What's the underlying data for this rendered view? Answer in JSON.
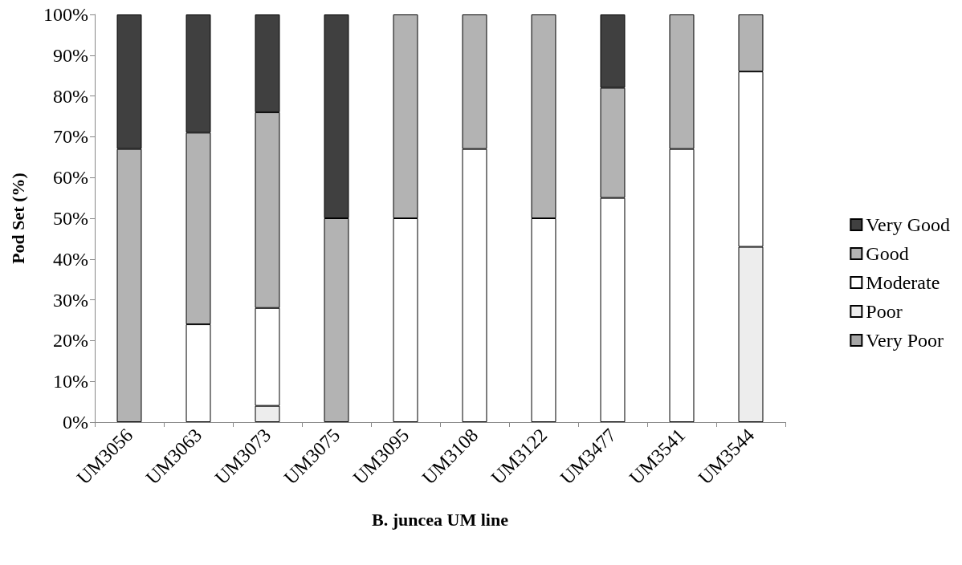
{
  "chart_data": {
    "type": "bar",
    "stacked": true,
    "xlabel": "B. juncea UM line",
    "ylabel": "Pod Set (%)",
    "categories": [
      "UM3056",
      "UM3063",
      "UM3073",
      "UM3075",
      "UM3095",
      "UM3108",
      "UM3122",
      "UM3477",
      "UM3541",
      "UM3544"
    ],
    "series": [
      {
        "name": "Very Poor",
        "color": "#a6a6a6",
        "values": [
          0,
          0,
          0,
          0,
          0,
          0,
          0,
          0,
          0,
          0
        ]
      },
      {
        "name": "Poor",
        "color": "#ededed",
        "values": [
          0,
          0,
          4,
          0,
          0,
          0,
          0,
          0,
          0,
          43
        ]
      },
      {
        "name": "Moderate",
        "color": "#ffffff",
        "values": [
          0,
          24,
          24,
          0,
          50,
          67,
          50,
          55,
          67,
          43
        ]
      },
      {
        "name": "Good",
        "color": "#b3b3b3",
        "values": [
          67,
          47,
          48,
          50,
          50,
          33,
          50,
          27,
          33,
          14
        ]
      },
      {
        "name": "Very Good",
        "color": "#404040",
        "values": [
          33,
          29,
          24,
          50,
          0,
          0,
          0,
          18,
          0,
          0
        ]
      }
    ],
    "ylim": [
      0,
      100
    ],
    "yticks": [
      {
        "value": 0,
        "label": "0%"
      },
      {
        "value": 10,
        "label": "10%"
      },
      {
        "value": 20,
        "label": "20%"
      },
      {
        "value": 30,
        "label": "30%"
      },
      {
        "value": 40,
        "label": "40%"
      },
      {
        "value": 50,
        "label": "50%"
      },
      {
        "value": 60,
        "label": "60%"
      },
      {
        "value": 70,
        "label": "70%"
      },
      {
        "value": 80,
        "label": "80%"
      },
      {
        "value": 90,
        "label": "90%"
      },
      {
        "value": 100,
        "label": "100%"
      }
    ],
    "grid": false,
    "legend": "right"
  }
}
